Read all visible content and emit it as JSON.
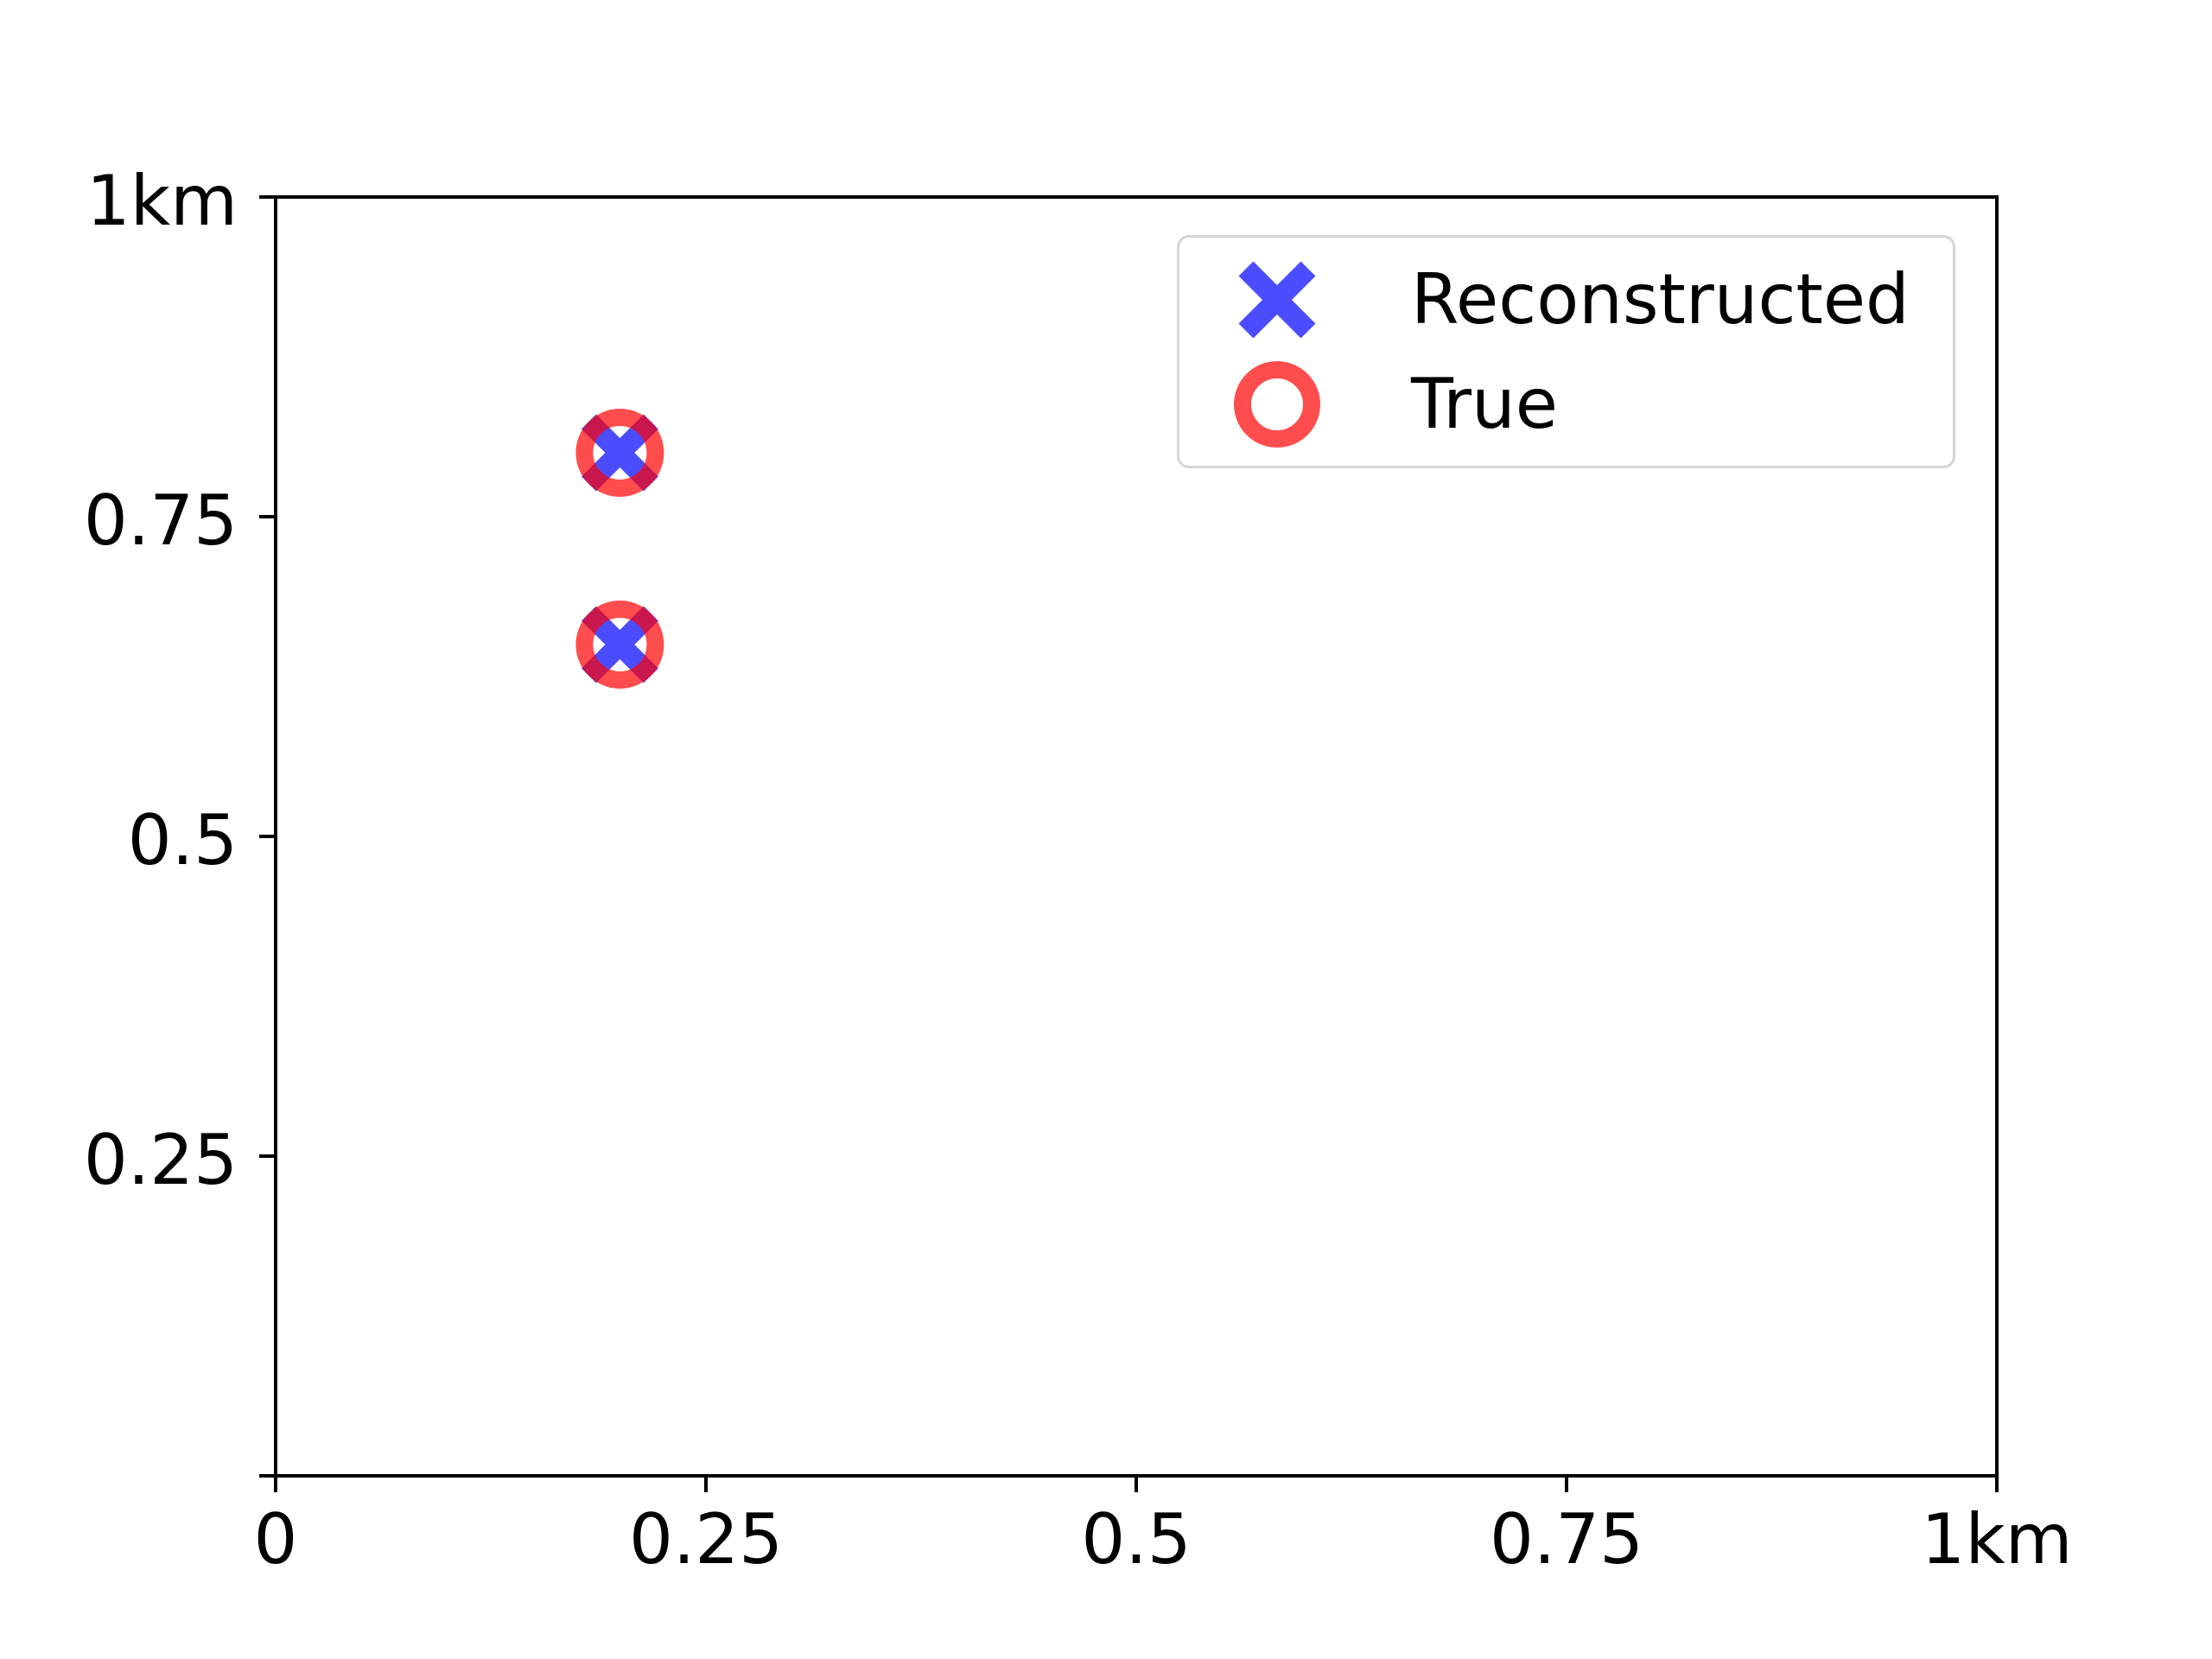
{
  "figure": {
    "background_color": "#ffffff",
    "text_color": "#000000",
    "spine_color": "#000000"
  },
  "chart_data": {
    "type": "scatter",
    "title": "",
    "xlabel": "",
    "ylabel": "",
    "xlim": [
      0,
      1
    ],
    "ylim": [
      0,
      1
    ],
    "grid": false,
    "legend_position": "upper right",
    "x_ticks": [
      0,
      0.25,
      0.5,
      0.75,
      1
    ],
    "x_tick_labels": [
      "0",
      "0.25",
      "0.5",
      "0.75",
      "1km"
    ],
    "y_ticks": [
      0,
      0.25,
      0.5,
      0.75,
      1
    ],
    "y_tick_labels": [
      "",
      "0.25",
      "0.5",
      "0.75",
      "1km"
    ],
    "series": [
      {
        "name": "Reconstructed",
        "marker": "x",
        "color": "#0000ff",
        "alpha": 0.7,
        "points": [
          [
            0.2,
            0.8
          ],
          [
            0.2,
            0.65
          ]
        ]
      },
      {
        "name": "True",
        "marker": "o",
        "color": "#ff0000",
        "alpha": 0.7,
        "points": [
          [
            0.2,
            0.8
          ],
          [
            0.2,
            0.65
          ]
        ]
      }
    ]
  },
  "legend": {
    "items": [
      {
        "label": "Reconstructed",
        "marker": "x-marker-icon"
      },
      {
        "label": "True",
        "marker": "circle-marker-icon"
      }
    ],
    "border_color": "#d5d5d5"
  }
}
